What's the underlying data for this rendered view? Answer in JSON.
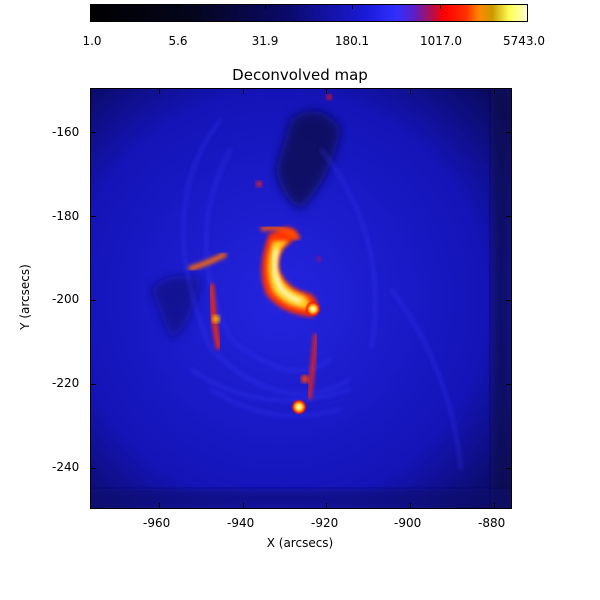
{
  "colorbar": {
    "ticks": [
      "1.0",
      "5.6",
      "31.9",
      "180.1",
      "1017.0",
      "5743.0"
    ]
  },
  "plot": {
    "title": "Deconvolved map",
    "xlabel": "X (arcsecs)",
    "ylabel": "Y (arcsecs)",
    "xticks": [
      "-960",
      "-940",
      "-920",
      "-900",
      "-880"
    ],
    "yticks": [
      "-160",
      "-180",
      "-200",
      "-220",
      "-240"
    ]
  }
}
